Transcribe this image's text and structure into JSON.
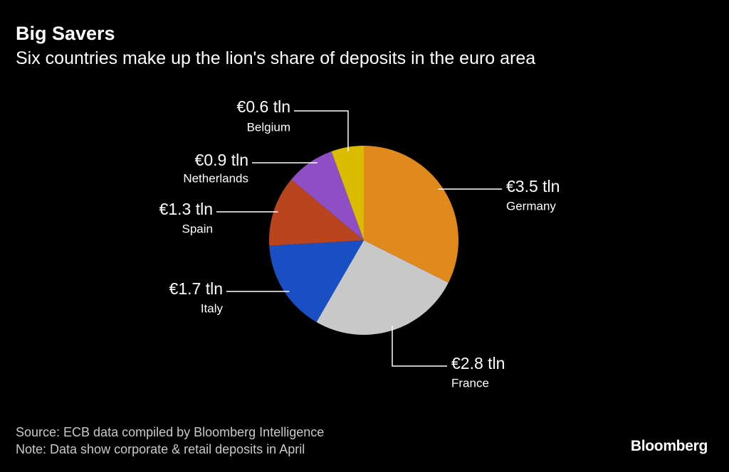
{
  "title": "Big Savers",
  "subtitle": "Six countries make up the lion's share of deposits in the euro area",
  "source": "Source: ECB data compiled by Bloomberg Intelligence",
  "note": "Note: Data show corporate & retail deposits in April",
  "logo": "Bloomberg",
  "chart_data": {
    "type": "pie",
    "unit": "€ tln",
    "slices": [
      {
        "name": "Germany",
        "value": 3.5,
        "label": "€3.5 tln",
        "color": "#E08A1E"
      },
      {
        "name": "France",
        "value": 2.8,
        "label": "€2.8 tln",
        "color": "#C8C8C8"
      },
      {
        "name": "Italy",
        "value": 1.7,
        "label": "€1.7 tln",
        "color": "#1A4FC4"
      },
      {
        "name": "Spain",
        "value": 1.3,
        "label": "€1.3 tln",
        "color": "#B8451E"
      },
      {
        "name": "Netherlands",
        "value": 0.9,
        "label": "€0.9 tln",
        "color": "#8E4FC4"
      },
      {
        "name": "Belgium",
        "value": 0.6,
        "label": "€0.6 tln",
        "color": "#D9BC00"
      }
    ]
  }
}
